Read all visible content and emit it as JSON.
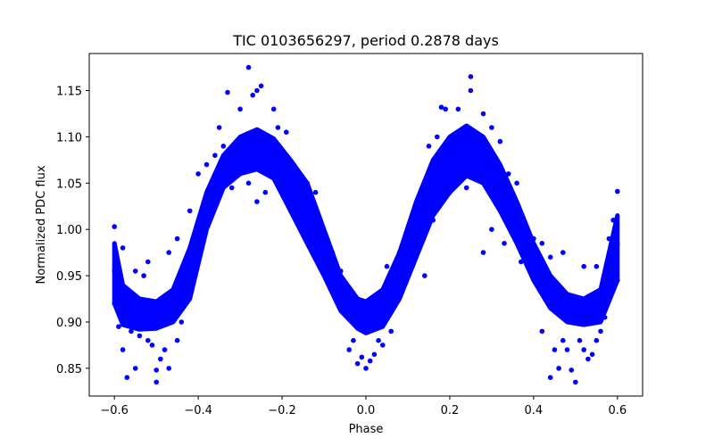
{
  "chart_data": {
    "type": "scatter",
    "title": "TIC 0103656297, period 0.2878 days",
    "xlabel": "Phase",
    "ylabel": "Normalized PDC flux",
    "xlim": [
      -0.66,
      0.66
    ],
    "ylim": [
      0.82,
      1.19
    ],
    "xticks": [
      -0.6,
      -0.4,
      -0.2,
      0.0,
      0.2,
      0.4,
      0.6
    ],
    "xtick_labels": [
      "−0.6",
      "−0.4",
      "−0.2",
      "0.0",
      "0.2",
      "0.4",
      "0.6"
    ],
    "yticks": [
      0.85,
      0.9,
      0.95,
      1.0,
      1.05,
      1.1,
      1.15
    ],
    "ytick_labels": [
      "0.85",
      "0.90",
      "0.95",
      "1.00",
      "1.05",
      "1.10",
      "1.15"
    ],
    "grid": false,
    "marker_color": "#0000ff",
    "points": [
      [
        -0.6,
        0.955
      ],
      [
        -0.595,
        0.93
      ],
      [
        -0.59,
        0.918
      ],
      [
        -0.58,
        0.912
      ],
      [
        -0.57,
        0.908
      ],
      [
        -0.56,
        0.905
      ],
      [
        -0.55,
        0.905
      ],
      [
        -0.54,
        0.904
      ],
      [
        -0.52,
        0.903
      ],
      [
        -0.5,
        0.904
      ],
      [
        -0.48,
        0.907
      ],
      [
        -0.46,
        0.915
      ],
      [
        -0.44,
        0.935
      ],
      [
        -0.42,
        0.965
      ],
      [
        -0.4,
        0.995
      ],
      [
        -0.38,
        1.022
      ],
      [
        -0.36,
        1.045
      ],
      [
        -0.34,
        1.062
      ],
      [
        -0.32,
        1.075
      ],
      [
        -0.3,
        1.083
      ],
      [
        -0.28,
        1.088
      ],
      [
        -0.26,
        1.09
      ],
      [
        -0.24,
        1.088
      ],
      [
        -0.22,
        1.082
      ],
      [
        -0.2,
        1.072
      ],
      [
        -0.18,
        1.058
      ],
      [
        -0.16,
        1.04
      ],
      [
        -0.14,
        1.018
      ],
      [
        -0.12,
        0.995
      ],
      [
        -0.1,
        0.972
      ],
      [
        -0.08,
        0.95
      ],
      [
        -0.06,
        0.93
      ],
      [
        -0.04,
        0.915
      ],
      [
        -0.02,
        0.906
      ],
      [
        0.0,
        0.903
      ],
      [
        0.02,
        0.906
      ],
      [
        0.04,
        0.915
      ],
      [
        0.06,
        0.932
      ],
      [
        0.08,
        0.955
      ],
      [
        0.1,
        0.98
      ],
      [
        0.12,
        1.005
      ],
      [
        0.14,
        1.028
      ],
      [
        0.16,
        1.05
      ],
      [
        0.18,
        1.068
      ],
      [
        0.2,
        1.082
      ],
      [
        0.22,
        1.092
      ],
      [
        0.24,
        1.097
      ],
      [
        0.26,
        1.095
      ],
      [
        0.28,
        1.088
      ],
      [
        0.3,
        1.075
      ],
      [
        0.32,
        1.058
      ],
      [
        0.34,
        1.035
      ],
      [
        0.36,
        1.01
      ],
      [
        0.38,
        0.985
      ],
      [
        0.4,
        0.96
      ],
      [
        0.42,
        0.94
      ],
      [
        0.44,
        0.925
      ],
      [
        0.46,
        0.915
      ],
      [
        0.48,
        0.909
      ],
      [
        0.5,
        0.906
      ],
      [
        0.52,
        0.905
      ],
      [
        0.54,
        0.907
      ],
      [
        0.56,
        0.912
      ],
      [
        0.58,
        0.925
      ],
      [
        0.6,
        0.985
      ],
      [
        -0.28,
        1.175
      ],
      [
        -0.26,
        1.15
      ],
      [
        -0.25,
        1.155
      ],
      [
        -0.27,
        1.145
      ],
      [
        -0.33,
        1.148
      ],
      [
        -0.3,
        1.13
      ],
      [
        -0.22,
        1.13
      ],
      [
        -0.21,
        1.11
      ],
      [
        -0.19,
        1.105
      ],
      [
        -0.35,
        1.11
      ],
      [
        0.25,
        1.165
      ],
      [
        0.25,
        1.15
      ],
      [
        0.18,
        1.132
      ],
      [
        0.19,
        1.13
      ],
      [
        0.28,
        1.125
      ],
      [
        0.22,
        1.13
      ],
      [
        0.3,
        1.11
      ],
      [
        0.15,
        1.09
      ],
      [
        0.17,
        1.1
      ],
      [
        0.32,
        1.095
      ],
      [
        -0.57,
        0.84
      ],
      [
        -0.55,
        0.85
      ],
      [
        -0.5,
        0.835
      ],
      [
        -0.5,
        0.848
      ],
      [
        -0.48,
        0.87
      ],
      [
        -0.49,
        0.86
      ],
      [
        -0.58,
        0.87
      ],
      [
        -0.52,
        0.88
      ],
      [
        -0.45,
        0.88
      ],
      [
        -0.47,
        0.85
      ],
      [
        -0.59,
        0.895
      ],
      [
        -0.56,
        0.89
      ],
      [
        -0.44,
        0.9
      ],
      [
        -0.54,
        0.885
      ],
      [
        -0.51,
        0.875
      ],
      [
        0.44,
        0.84
      ],
      [
        0.5,
        0.835
      ],
      [
        0.49,
        0.848
      ],
      [
        0.53,
        0.86
      ],
      [
        0.52,
        0.87
      ],
      [
        0.46,
        0.85
      ],
      [
        0.48,
        0.87
      ],
      [
        0.55,
        0.88
      ],
      [
        0.56,
        0.89
      ],
      [
        0.47,
        0.88
      ],
      [
        0.42,
        0.89
      ],
      [
        0.57,
        0.905
      ],
      [
        0.51,
        0.88
      ],
      [
        0.45,
        0.87
      ],
      [
        0.54,
        0.865
      ],
      [
        -0.02,
        0.855
      ],
      [
        0.0,
        0.85
      ],
      [
        0.02,
        0.865
      ],
      [
        -0.04,
        0.87
      ],
      [
        0.04,
        0.875
      ],
      [
        -0.01,
        0.862
      ],
      [
        0.01,
        0.858
      ],
      [
        -0.03,
        0.88
      ],
      [
        0.03,
        0.88
      ],
      [
        0.06,
        0.89
      ],
      [
        -0.58,
        0.98
      ],
      [
        -0.55,
        0.955
      ],
      [
        -0.52,
        0.965
      ],
      [
        -0.47,
        0.975
      ],
      [
        -0.53,
        0.95
      ],
      [
        0.52,
        0.96
      ],
      [
        0.55,
        0.96
      ],
      [
        0.58,
        0.99
      ],
      [
        0.6,
        1.041
      ],
      [
        0.47,
        0.975
      ],
      [
        -0.1,
        0.98
      ],
      [
        -0.08,
        0.975
      ],
      [
        -0.06,
        0.955
      ],
      [
        0.05,
        0.96
      ],
      [
        0.08,
        0.975
      ],
      [
        0.12,
        1.0
      ],
      [
        0.16,
        1.01
      ],
      [
        0.1,
        0.99
      ],
      [
        0.14,
        0.95
      ],
      [
        -0.14,
        1.05
      ],
      [
        -0.12,
        1.04
      ],
      [
        -0.16,
        1.06
      ],
      [
        0.32,
        1.04
      ],
      [
        0.34,
        1.06
      ],
      [
        0.36,
        1.05
      ],
      [
        0.37,
        0.965
      ],
      [
        0.4,
        0.99
      ],
      [
        0.3,
        1.0
      ],
      [
        0.28,
        0.975
      ],
      [
        0.33,
        0.985
      ],
      [
        -0.4,
        1.06
      ],
      [
        -0.38,
        1.07
      ],
      [
        -0.42,
        1.02
      ],
      [
        -0.36,
        1.08
      ],
      [
        -0.34,
        1.09
      ],
      [
        -0.24,
        1.04
      ],
      [
        -0.28,
        1.05
      ],
      [
        -0.32,
        1.045
      ],
      [
        -0.2,
        1.04
      ],
      [
        -0.26,
        1.03
      ],
      [
        0.2,
        1.04
      ],
      [
        0.22,
        1.05
      ],
      [
        0.24,
        1.045
      ],
      [
        0.26,
        1.06
      ],
      [
        0.18,
        1.035
      ],
      [
        -0.45,
        0.99
      ],
      [
        -0.43,
        0.96
      ],
      [
        -0.41,
        0.95
      ],
      [
        0.42,
        0.985
      ],
      [
        0.44,
        0.97
      ],
      [
        -0.6,
        1.003
      ],
      [
        0.59,
        1.01
      ],
      [
        0.595,
        1.0
      ],
      [
        -0.6,
        0.92
      ],
      [
        0.6,
        0.945
      ]
    ],
    "bands": [
      {
        "xmin": -0.6,
        "xmax": 0.6,
        "min": [
          [
            -0.6,
            0.92
          ],
          [
            -0.58,
            0.897
          ],
          [
            -0.54,
            0.892
          ],
          [
            -0.5,
            0.893
          ],
          [
            -0.46,
            0.9
          ],
          [
            -0.42,
            0.925
          ],
          [
            -0.38,
            1.0
          ],
          [
            -0.34,
            1.045
          ],
          [
            -0.3,
            1.06
          ],
          [
            -0.26,
            1.065
          ],
          [
            -0.22,
            1.055
          ],
          [
            -0.18,
            1.02
          ],
          [
            -0.14,
            0.985
          ],
          [
            -0.1,
            0.95
          ],
          [
            -0.06,
            0.912
          ],
          [
            -0.02,
            0.893
          ],
          [
            0.0,
            0.888
          ],
          [
            0.04,
            0.895
          ],
          [
            0.08,
            0.925
          ],
          [
            0.12,
            0.97
          ],
          [
            0.16,
            1.015
          ],
          [
            0.2,
            1.04
          ],
          [
            0.24,
            1.058
          ],
          [
            0.28,
            1.05
          ],
          [
            0.32,
            1.02
          ],
          [
            0.36,
            0.985
          ],
          [
            0.4,
            0.945
          ],
          [
            0.44,
            0.915
          ],
          [
            0.48,
            0.9
          ],
          [
            0.52,
            0.897
          ],
          [
            0.56,
            0.9
          ],
          [
            0.6,
            0.945
          ]
        ],
        "max": [
          [
            -0.6,
            0.985
          ],
          [
            -0.58,
            0.94
          ],
          [
            -0.54,
            0.925
          ],
          [
            -0.5,
            0.922
          ],
          [
            -0.46,
            0.935
          ],
          [
            -0.42,
            0.98
          ],
          [
            -0.38,
            1.04
          ],
          [
            -0.34,
            1.08
          ],
          [
            -0.3,
            1.1
          ],
          [
            -0.26,
            1.108
          ],
          [
            -0.22,
            1.098
          ],
          [
            -0.18,
            1.075
          ],
          [
            -0.14,
            1.05
          ],
          [
            -0.1,
            1.0
          ],
          [
            -0.06,
            0.95
          ],
          [
            -0.02,
            0.925
          ],
          [
            0.0,
            0.922
          ],
          [
            0.04,
            0.935
          ],
          [
            0.08,
            0.975
          ],
          [
            0.12,
            1.03
          ],
          [
            0.16,
            1.075
          ],
          [
            0.2,
            1.1
          ],
          [
            0.24,
            1.112
          ],
          [
            0.28,
            1.1
          ],
          [
            0.32,
            1.07
          ],
          [
            0.36,
            1.03
          ],
          [
            0.4,
            0.985
          ],
          [
            0.44,
            0.95
          ],
          [
            0.48,
            0.93
          ],
          [
            0.52,
            0.925
          ],
          [
            0.56,
            0.935
          ],
          [
            0.6,
            1.015
          ]
        ]
      }
    ]
  }
}
